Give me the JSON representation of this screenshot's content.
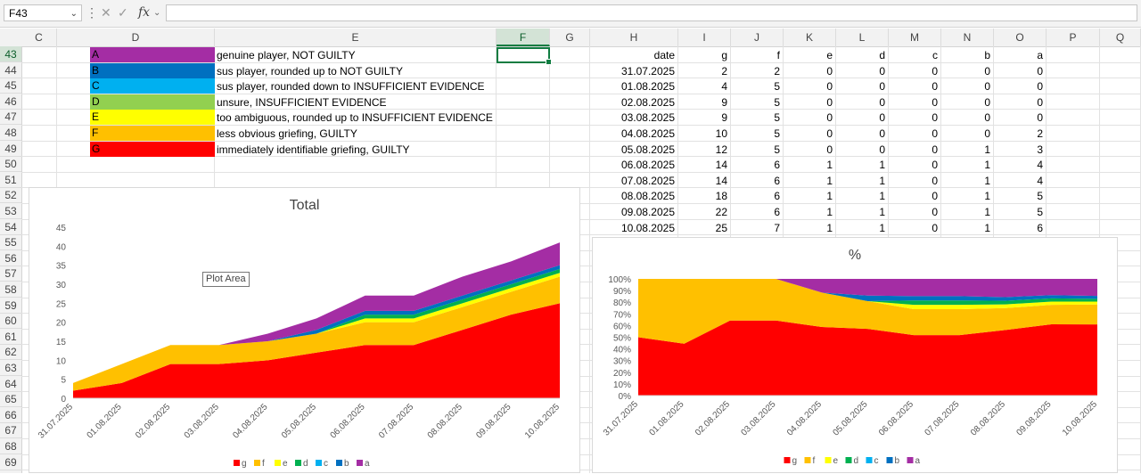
{
  "formula_bar": {
    "name_box": "F43",
    "fx": "fx",
    "formula": ""
  },
  "columns": [
    {
      "label": "C",
      "x": 24,
      "w": 40
    },
    {
      "label": "D",
      "x": 64,
      "w": 177
    },
    {
      "label": "E",
      "x": 241,
      "w": 316
    },
    {
      "label": "F",
      "x": 557,
      "w": 60
    },
    {
      "label": "G",
      "x": 617,
      "w": 45
    },
    {
      "label": "H",
      "x": 662,
      "w": 99
    },
    {
      "label": "I",
      "x": 761,
      "w": 59
    },
    {
      "label": "J",
      "x": 820,
      "w": 59
    },
    {
      "label": "K",
      "x": 879,
      "w": 59
    },
    {
      "label": "L",
      "x": 938,
      "w": 59
    },
    {
      "label": "M",
      "x": 997,
      "w": 59
    },
    {
      "label": "N",
      "x": 1056,
      "w": 59
    },
    {
      "label": "O",
      "x": 1115,
      "w": 59
    },
    {
      "label": "P",
      "x": 1174,
      "w": 60
    },
    {
      "label": "Q",
      "x": 1234,
      "w": 46
    }
  ],
  "rows": [
    "43",
    "44",
    "45",
    "46",
    "47",
    "48",
    "49",
    "50",
    "51",
    "52",
    "53",
    "54",
    "55",
    "56",
    "57",
    "58",
    "59",
    "60",
    "61",
    "62",
    "63",
    "64",
    "65",
    "66",
    "67",
    "68",
    "69"
  ],
  "legend_rows": [
    {
      "code": "A",
      "color": "#A42DA4",
      "text": "genuine player, NOT GUILTY"
    },
    {
      "code": "B",
      "color": "#0070C0",
      "text": "sus player, rounded up to NOT GUILTY"
    },
    {
      "code": "C",
      "color": "#00B0F0",
      "text": "sus player, rounded down to INSUFFICIENT EVIDENCE"
    },
    {
      "code": "D",
      "color": "#92D050",
      "text": "unsure, INSUFFICIENT EVIDENCE"
    },
    {
      "code": "E",
      "color": "#FFFF00",
      "text": "too ambiguous, rounded up to INSUFFICIENT EVIDENCE"
    },
    {
      "code": "F",
      "color": "#FFC000",
      "text": "less obvious griefing, GUILTY"
    },
    {
      "code": "G",
      "color": "#FF0000",
      "text": "immediately identifiable griefing, GUILTY"
    }
  ],
  "table": {
    "headers": [
      "date",
      "g",
      "f",
      "e",
      "d",
      "c",
      "b",
      "a"
    ],
    "rows": [
      [
        "31.07.2025",
        "2",
        "2",
        "0",
        "0",
        "0",
        "0",
        "0"
      ],
      [
        "01.08.2025",
        "4",
        "5",
        "0",
        "0",
        "0",
        "0",
        "0"
      ],
      [
        "02.08.2025",
        "9",
        "5",
        "0",
        "0",
        "0",
        "0",
        "0"
      ],
      [
        "03.08.2025",
        "9",
        "5",
        "0",
        "0",
        "0",
        "0",
        "0"
      ],
      [
        "04.08.2025",
        "10",
        "5",
        "0",
        "0",
        "0",
        "0",
        "2"
      ],
      [
        "05.08.2025",
        "12",
        "5",
        "0",
        "0",
        "0",
        "1",
        "3"
      ],
      [
        "06.08.2025",
        "14",
        "6",
        "1",
        "1",
        "0",
        "1",
        "4"
      ],
      [
        "07.08.2025",
        "14",
        "6",
        "1",
        "1",
        "0",
        "1",
        "4"
      ],
      [
        "08.08.2025",
        "18",
        "6",
        "1",
        "1",
        "0",
        "1",
        "5"
      ],
      [
        "09.08.2025",
        "22",
        "6",
        "1",
        "1",
        "0",
        "1",
        "5"
      ],
      [
        "10.08.2025",
        "25",
        "7",
        "1",
        "1",
        "0",
        "1",
        "6"
      ]
    ]
  },
  "tooltip": "Plot Area",
  "chart_data": [
    {
      "type": "area",
      "stacked": true,
      "title": "Total",
      "x": [
        "31.07.2025",
        "01.08.2025",
        "02.08.2025",
        "03.08.2025",
        "04.08.2025",
        "05.08.2025",
        "06.08.2025",
        "07.08.2025",
        "08.08.2025",
        "09.08.2025",
        "10.08.2025"
      ],
      "ylim": [
        0,
        45
      ],
      "yticks": [
        "0",
        "5",
        "10",
        "15",
        "20",
        "25",
        "30",
        "35",
        "40",
        "45"
      ],
      "series": [
        {
          "name": "g",
          "color": "#FF0000",
          "values": [
            2,
            4,
            9,
            9,
            10,
            12,
            14,
            14,
            18,
            22,
            25
          ]
        },
        {
          "name": "f",
          "color": "#FFC000",
          "values": [
            2,
            5,
            5,
            5,
            5,
            5,
            6,
            6,
            6,
            6,
            7
          ]
        },
        {
          "name": "e",
          "color": "#FFFF00",
          "values": [
            0,
            0,
            0,
            0,
            0,
            0,
            1,
            1,
            1,
            1,
            1
          ]
        },
        {
          "name": "d",
          "color": "#00B050",
          "values": [
            0,
            0,
            0,
            0,
            0,
            0,
            1,
            1,
            1,
            1,
            1
          ]
        },
        {
          "name": "c",
          "color": "#00B0F0",
          "values": [
            0,
            0,
            0,
            0,
            0,
            0,
            0,
            0,
            0,
            0,
            0
          ]
        },
        {
          "name": "b",
          "color": "#0070C0",
          "values": [
            0,
            0,
            0,
            0,
            0,
            1,
            1,
            1,
            1,
            1,
            1
          ]
        },
        {
          "name": "a",
          "color": "#A42DA4",
          "values": [
            0,
            0,
            0,
            0,
            2,
            3,
            4,
            4,
            5,
            5,
            6
          ]
        }
      ],
      "legend": "bottom"
    },
    {
      "type": "area",
      "stacked": "percent",
      "title": "%",
      "x": [
        "31.07.2025",
        "01.08.2025",
        "02.08.2025",
        "03.08.2025",
        "04.08.2025",
        "05.08.2025",
        "06.08.2025",
        "07.08.2025",
        "08.08.2025",
        "09.08.2025",
        "10.08.2025"
      ],
      "ylim": [
        0,
        100
      ],
      "yticks": [
        "0%",
        "10%",
        "20%",
        "30%",
        "40%",
        "50%",
        "60%",
        "70%",
        "80%",
        "90%",
        "100%"
      ],
      "series_ref": "same as Total",
      "legend": "bottom"
    }
  ]
}
